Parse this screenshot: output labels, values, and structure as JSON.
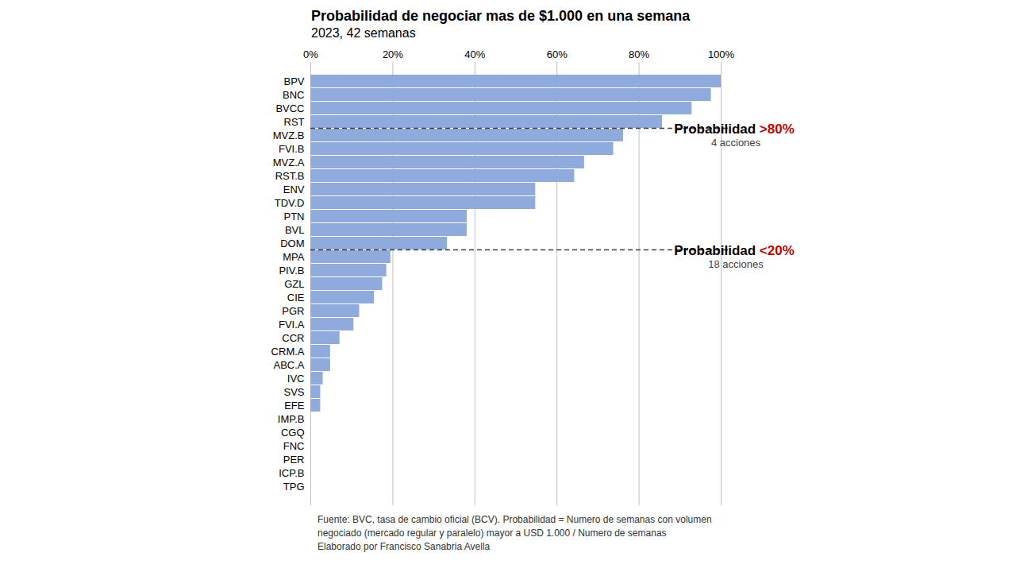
{
  "chart_data": {
    "type": "bar",
    "orientation": "horizontal",
    "title": "Probabilidad de negociar mas de $1.000 en una semana",
    "subtitle": "2023, 42 semanas",
    "categories": [
      "BPV",
      "BNC",
      "BVCC",
      "RST",
      "MVZ.B",
      "FVI.B",
      "MVZ.A",
      "RST.B",
      "ENV",
      "TDV.D",
      "PTN",
      "BVL",
      "DOM",
      "MPA",
      "PIV.B",
      "GZL",
      "CIE",
      "PGR",
      "FVI.A",
      "CCR",
      "CRM.A",
      "ABC.A",
      "IVC",
      "SVS",
      "EFE",
      "IMP.B",
      "CGQ",
      "FNC",
      "PER",
      "ICP.B",
      "TPG"
    ],
    "values": [
      100,
      97.6,
      92.9,
      85.7,
      76.2,
      73.8,
      66.7,
      64.3,
      54.8,
      54.8,
      38.1,
      38.1,
      33.3,
      19.5,
      18.5,
      17.5,
      15.5,
      11.9,
      10.5,
      7.1,
      4.8,
      4.8,
      3.0,
      2.4,
      2.4,
      0,
      0,
      0,
      0,
      0,
      0
    ],
    "color": "#8faadc",
    "xlim": [
      0,
      100
    ],
    "xticks": [
      {
        "value": 0,
        "label": "0%"
      },
      {
        "value": 20,
        "label": "20%"
      },
      {
        "value": 40,
        "label": "40%"
      },
      {
        "value": 60,
        "label": "60%"
      },
      {
        "value": 80,
        "label": "80%"
      },
      {
        "value": 100,
        "label": "100%"
      }
    ],
    "grid": true,
    "annotations": [
      {
        "between": [
          "RST",
          "MVZ.B"
        ],
        "label": "Probabilidad",
        "highlight": ">80%",
        "color": "#c00000",
        "note": "4 acciones"
      },
      {
        "between": [
          "DOM",
          "MPA"
        ],
        "label": "Probabilidad",
        "highlight": "<20%",
        "color": "#c00000",
        "note": "18 acciones"
      }
    ],
    "source": [
      "Fuente: BVC, tasa de cambio oficial (BCV). Probabilidad = Numero de semanas con volumen",
      "negociado (mercado regular y paralelo) mayor a USD 1.000 / Numero de semanas",
      "Elaborado por Francisco Sanabria Avella"
    ]
  }
}
